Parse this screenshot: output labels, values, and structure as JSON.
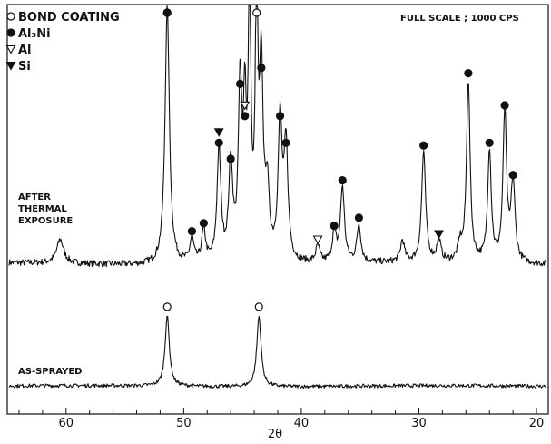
{
  "chart_data": {
    "type": "line",
    "xlabel": "2θ",
    "x_reversed": true,
    "xlim": [
      65,
      19
    ],
    "x_ticks": [
      60,
      50,
      40,
      30,
      20
    ],
    "x_tick_labels": [
      "60",
      "50",
      "40",
      "30",
      "20"
    ],
    "full_scale_note": "FULL SCALE ; 1000 CPS",
    "legend_position": "top-left",
    "legend": [
      {
        "marker": "open-circle",
        "label": "BOND COATING"
      },
      {
        "marker": "filled-circle",
        "label": "Al₃Ni"
      },
      {
        "marker": "open-triangle-down",
        "label": "Al"
      },
      {
        "marker": "filled-triangle-down",
        "label": "Si"
      }
    ],
    "series": [
      {
        "name": "AFTER THERMAL EXPOSURE",
        "name_lines": [
          "AFTER",
          "THERMAL",
          "EXPOSURE"
        ],
        "baseline": 40,
        "peaks": [
          {
            "x": 60.5,
            "h": 90,
            "w": 0.35
          },
          {
            "x": 51.4,
            "h": 965,
            "w": 0.22
          },
          {
            "x": 49.3,
            "h": 90,
            "w": 0.2
          },
          {
            "x": 48.3,
            "h": 120,
            "w": 0.2
          },
          {
            "x": 47.0,
            "h": 420,
            "w": 0.2
          },
          {
            "x": 46.0,
            "h": 360,
            "w": 0.2
          },
          {
            "x": 45.2,
            "h": 640,
            "w": 0.18
          },
          {
            "x": 44.8,
            "h": 520,
            "w": 0.15
          },
          {
            "x": 44.4,
            "h": 1000,
            "w": 0.13
          },
          {
            "x": 43.8,
            "h": 1000,
            "w": 0.13
          },
          {
            "x": 43.4,
            "h": 700,
            "w": 0.18
          },
          {
            "x": 42.9,
            "h": 250,
            "w": 0.2
          },
          {
            "x": 41.8,
            "h": 520,
            "w": 0.2
          },
          {
            "x": 41.3,
            "h": 420,
            "w": 0.2
          },
          {
            "x": 38.6,
            "h": 60,
            "w": 0.2
          },
          {
            "x": 37.2,
            "h": 110,
            "w": 0.2
          },
          {
            "x": 36.5,
            "h": 280,
            "w": 0.2
          },
          {
            "x": 35.1,
            "h": 140,
            "w": 0.2
          },
          {
            "x": 31.4,
            "h": 80,
            "w": 0.2
          },
          {
            "x": 29.6,
            "h": 410,
            "w": 0.2
          },
          {
            "x": 28.3,
            "h": 80,
            "w": 0.2
          },
          {
            "x": 26.5,
            "h": 60,
            "w": 0.2
          },
          {
            "x": 25.8,
            "h": 680,
            "w": 0.18
          },
          {
            "x": 24.0,
            "h": 420,
            "w": 0.18
          },
          {
            "x": 22.7,
            "h": 560,
            "w": 0.18
          },
          {
            "x": 22.0,
            "h": 300,
            "w": 0.2
          }
        ],
        "markers": [
          {
            "x": 51.4,
            "h": 965,
            "symbol": "open-circle"
          },
          {
            "x": 43.8,
            "h": 1000,
            "symbol": "open-circle"
          },
          {
            "x": 51.4,
            "h": 965,
            "symbol": "filled-circle"
          },
          {
            "x": 49.3,
            "h": 90,
            "symbol": "filled-circle"
          },
          {
            "x": 48.3,
            "h": 120,
            "symbol": "filled-circle"
          },
          {
            "x": 47.0,
            "h": 420,
            "symbol": "filled-circle"
          },
          {
            "x": 46.0,
            "h": 360,
            "symbol": "filled-circle"
          },
          {
            "x": 45.2,
            "h": 640,
            "symbol": "filled-circle"
          },
          {
            "x": 44.8,
            "h": 520,
            "symbol": "filled-circle"
          },
          {
            "x": 43.4,
            "h": 700,
            "symbol": "filled-circle"
          },
          {
            "x": 41.8,
            "h": 520,
            "symbol": "filled-circle"
          },
          {
            "x": 41.3,
            "h": 420,
            "symbol": "filled-circle"
          },
          {
            "x": 37.2,
            "h": 110,
            "symbol": "filled-circle"
          },
          {
            "x": 36.5,
            "h": 280,
            "symbol": "filled-circle"
          },
          {
            "x": 35.1,
            "h": 140,
            "symbol": "filled-circle"
          },
          {
            "x": 29.6,
            "h": 410,
            "symbol": "filled-circle"
          },
          {
            "x": 25.8,
            "h": 680,
            "symbol": "filled-circle"
          },
          {
            "x": 24.0,
            "h": 420,
            "symbol": "filled-circle"
          },
          {
            "x": 22.7,
            "h": 560,
            "symbol": "filled-circle"
          },
          {
            "x": 22.0,
            "h": 300,
            "symbol": "filled-circle"
          },
          {
            "x": 44.8,
            "h": 520,
            "symbol": "open-triangle-down"
          },
          {
            "x": 38.6,
            "h": 60,
            "symbol": "open-triangle-down"
          },
          {
            "x": 47.0,
            "h": 420,
            "symbol": "filled-triangle-down"
          },
          {
            "x": 28.3,
            "h": 80,
            "symbol": "filled-triangle-down"
          }
        ]
      },
      {
        "name": "AS-SPRAYED",
        "name_lines": [
          "AS-SPRAYED"
        ],
        "baseline": 40,
        "peaks": [
          {
            "x": 51.4,
            "h": 470,
            "w": 0.22
          },
          {
            "x": 43.6,
            "h": 470,
            "w": 0.22
          }
        ],
        "markers": [
          {
            "x": 51.4,
            "h": 470,
            "symbol": "open-circle"
          },
          {
            "x": 43.6,
            "h": 470,
            "symbol": "open-circle"
          }
        ]
      }
    ]
  }
}
